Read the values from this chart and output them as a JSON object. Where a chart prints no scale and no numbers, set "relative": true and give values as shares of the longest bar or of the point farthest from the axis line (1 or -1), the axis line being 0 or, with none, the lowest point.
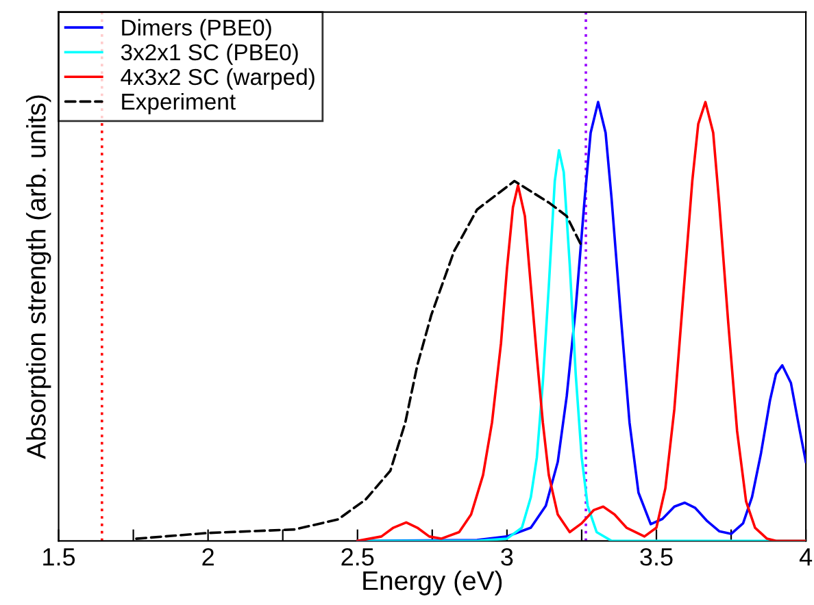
{
  "chart_data": {
    "type": "line",
    "relative": true,
    "xlabel": "Energy (eV)",
    "ylabel": "Absorption strength (arb. units)",
    "xlim": [
      1.5,
      4
    ],
    "xticks": [
      1.5,
      {
        "value": 1.75,
        "label": null
      },
      2,
      {
        "value": 2.25,
        "label": null
      },
      2.5,
      {
        "value": 2.75,
        "label": null
      },
      3,
      {
        "value": 3.25,
        "label": null
      },
      3.5,
      {
        "value": 3.75,
        "label": null
      },
      4
    ],
    "legend": "top left",
    "grid": false,
    "ref_lines": [
      {
        "axis": "x",
        "value": 1.645,
        "color": "#ff0000",
        "line_style": "dotted"
      },
      {
        "axis": "x",
        "value": 3.264,
        "color": "#9900ff",
        "line_style": "dotted"
      }
    ],
    "series": [
      {
        "name": "Dimers (PBE0)",
        "color": "#0000ff",
        "x": [
          2.5,
          2.9,
          3.0,
          3.08,
          3.13,
          3.17,
          3.2,
          3.23,
          3.26,
          3.28,
          3.305,
          3.33,
          3.35,
          3.38,
          3.41,
          3.44,
          3.481,
          3.52,
          3.56,
          3.595,
          3.63,
          3.67,
          3.71,
          3.75,
          3.79,
          3.82,
          3.85,
          3.88,
          3.9,
          3.921,
          3.95,
          3.98,
          4.0
        ],
        "values": [
          0,
          0.002,
          0.01,
          0.03,
          0.08,
          0.18,
          0.33,
          0.53,
          0.78,
          0.93,
          1.0,
          0.93,
          0.78,
          0.52,
          0.27,
          0.11,
          0.038,
          0.05,
          0.078,
          0.087,
          0.075,
          0.045,
          0.022,
          0.016,
          0.04,
          0.1,
          0.2,
          0.32,
          0.38,
          0.4,
          0.36,
          0.25,
          0.18
        ]
      },
      {
        "name": "3x2x1 SC (PBE0)",
        "color": "#00ffff",
        "x": [
          2.5,
          2.9,
          3.0,
          3.05,
          3.08,
          3.1,
          3.12,
          3.14,
          3.16,
          3.174,
          3.19,
          3.21,
          3.23,
          3.25,
          3.27,
          3.3,
          3.35,
          4.0
        ],
        "values": [
          0,
          0,
          0.005,
          0.03,
          0.1,
          0.19,
          0.36,
          0.58,
          0.82,
          0.89,
          0.84,
          0.63,
          0.38,
          0.19,
          0.08,
          0.02,
          0,
          0
        ]
      },
      {
        "name": "4x3x2 SC (warped)",
        "color": "#ff0000",
        "x": [
          2.5,
          2.58,
          2.62,
          2.663,
          2.7,
          2.74,
          2.78,
          2.84,
          2.88,
          2.92,
          2.95,
          2.98,
          3.0,
          3.02,
          3.037,
          3.06,
          3.08,
          3.1,
          3.12,
          3.14,
          3.17,
          3.21,
          3.25,
          3.29,
          3.322,
          3.36,
          3.4,
          3.46,
          3.5,
          3.53,
          3.56,
          3.59,
          3.62,
          3.64,
          3.664,
          3.69,
          3.71,
          3.74,
          3.77,
          3.8,
          3.83,
          3.87,
          3.9,
          4.0
        ],
        "values": [
          0,
          0.01,
          0.03,
          0.042,
          0.03,
          0.01,
          0.005,
          0.02,
          0.06,
          0.15,
          0.27,
          0.45,
          0.62,
          0.76,
          0.81,
          0.74,
          0.58,
          0.42,
          0.27,
          0.15,
          0.06,
          0.02,
          0.04,
          0.07,
          0.078,
          0.06,
          0.03,
          0.01,
          0.03,
          0.12,
          0.3,
          0.56,
          0.82,
          0.95,
          1.0,
          0.93,
          0.77,
          0.5,
          0.25,
          0.09,
          0.03,
          0.005,
          0,
          0
        ]
      },
      {
        "name": "Experiment",
        "color": "#000000",
        "line_style": "dashed",
        "x": [
          1.76,
          2.0,
          2.29,
          2.435,
          2.527,
          2.61,
          2.66,
          2.7,
          2.747,
          2.823,
          2.9,
          3.025,
          3.142,
          3.2,
          3.246
        ],
        "values": [
          0.005,
          0.018,
          0.026,
          0.049,
          0.094,
          0.16,
          0.27,
          0.4,
          0.515,
          0.66,
          0.755,
          0.82,
          0.77,
          0.74,
          0.677
        ]
      }
    ]
  }
}
